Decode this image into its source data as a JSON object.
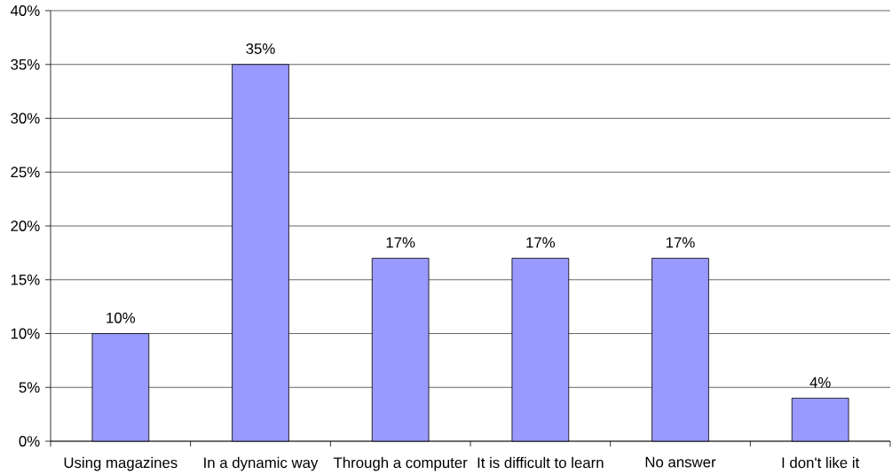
{
  "chart_data": {
    "type": "bar",
    "categories": [
      "Using magazines",
      "In a dynamic way",
      "Through a computer",
      "It is difficult to learn",
      "No answer",
      "I don't like it"
    ],
    "values": [
      10,
      35,
      17,
      17,
      17,
      4
    ],
    "color": "#9999ff",
    "value_labels": [
      "10%",
      "35%",
      "17%",
      "17%",
      "17%",
      "4%"
    ],
    "ylim": [
      0,
      40
    ],
    "yticks": [
      {
        "value": 0,
        "label": "0%"
      },
      {
        "value": 5,
        "label": "5%"
      },
      {
        "value": 10,
        "label": "10%"
      },
      {
        "value": 15,
        "label": "15%"
      },
      {
        "value": 20,
        "label": "20%"
      },
      {
        "value": 25,
        "label": "25%"
      },
      {
        "value": 30,
        "label": "30%"
      },
      {
        "value": 35,
        "label": "35%"
      },
      {
        "value": 40,
        "label": "40%"
      }
    ],
    "grid": "y"
  }
}
